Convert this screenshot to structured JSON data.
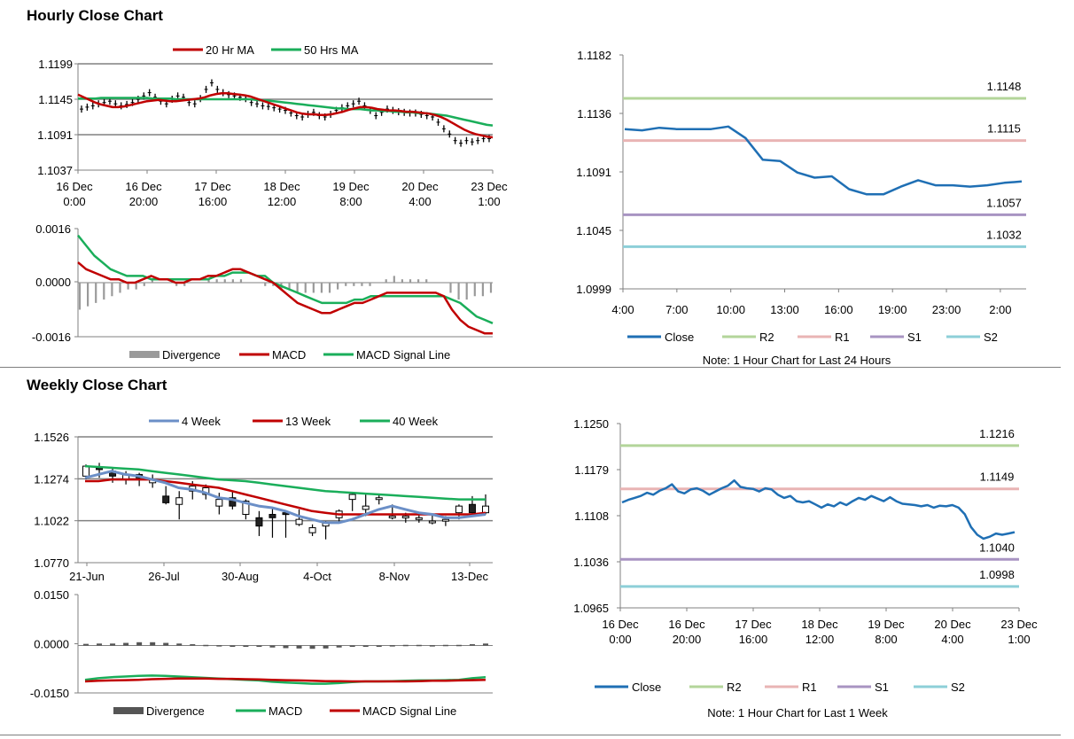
{
  "sections": {
    "hourly_title": "Hourly Close Chart",
    "weekly_title": "Weekly Close Chart"
  },
  "colors": {
    "red": "#c00000",
    "green": "#1aae5a",
    "blue": "#1f6fb4",
    "steel": "#6b8fc7",
    "gray_hist": "#9a9a9a",
    "dark_hist": "#555555",
    "r2": "#b3d59a",
    "r1": "#e9b4b4",
    "s1": "#a894c2",
    "s2": "#8dcfd8",
    "axis": "#808080"
  },
  "chart_data": [
    {
      "id": "hourly_price",
      "type": "line",
      "legend": [
        "20 Hr MA",
        "50 Hrs MA"
      ],
      "yticks": [
        "1.1199",
        "1.1145",
        "1.1091",
        "1.1037"
      ],
      "ylim": [
        1.1037,
        1.1199
      ],
      "xticks": [
        [
          "16 Dec",
          "0:00"
        ],
        [
          "16 Dec",
          "20:00"
        ],
        [
          "17 Dec",
          "16:00"
        ],
        [
          "18 Dec",
          "12:00"
        ],
        [
          "19 Dec",
          "8:00"
        ],
        [
          "20 Dec",
          "4:00"
        ],
        [
          "23 Dec",
          "1:00"
        ]
      ],
      "closes": [
        1.113,
        1.1133,
        1.1135,
        1.1138,
        1.114,
        1.1142,
        1.1138,
        1.1135,
        1.1137,
        1.114,
        1.1145,
        1.115,
        1.1155,
        1.1148,
        1.1142,
        1.1138,
        1.1145,
        1.115,
        1.1148,
        1.114,
        1.1138,
        1.1146,
        1.116,
        1.117,
        1.116,
        1.1155,
        1.1152,
        1.115,
        1.1148,
        1.1146,
        1.114,
        1.1138,
        1.1135,
        1.1134,
        1.1132,
        1.113,
        1.1128,
        1.1124,
        1.112,
        1.1118,
        1.1122,
        1.1125,
        1.112,
        1.1118,
        1.1122,
        1.1128,
        1.1132,
        1.1135,
        1.1138,
        1.1142,
        1.1135,
        1.1128,
        1.112,
        1.1125,
        1.113,
        1.1128,
        1.1126,
        1.1125,
        1.1124,
        1.1124,
        1.1122,
        1.112,
        1.1118,
        1.111,
        1.11,
        1.1092,
        1.1082,
        1.1078,
        1.1082,
        1.108,
        1.1082,
        1.1085,
        1.1085
      ],
      "ma20": [
        1.1152,
        1.1148,
        1.1144,
        1.114,
        1.1137,
        1.1135,
        1.1133,
        1.1133,
        1.1134,
        1.1136,
        1.1138,
        1.114,
        1.1142,
        1.1143,
        1.1144,
        1.1143,
        1.1142,
        1.1142,
        1.1143,
        1.1144,
        1.1145,
        1.1146,
        1.1148,
        1.1151,
        1.1153,
        1.1154,
        1.1154,
        1.1153,
        1.1152,
        1.1151,
        1.1149,
        1.1146,
        1.1143,
        1.114,
        1.1137,
        1.1134,
        1.1131,
        1.1128,
        1.1125,
        1.1123,
        1.1122,
        1.1122,
        1.1121,
        1.1121,
        1.1122,
        1.1124,
        1.1126,
        1.1129,
        1.1131,
        1.1133,
        1.1133,
        1.1132,
        1.113,
        1.1129,
        1.1128,
        1.1128,
        1.1127,
        1.1126,
        1.1126,
        1.1125,
        1.1124,
        1.1123,
        1.1121,
        1.1118,
        1.1114,
        1.1109,
        1.1104,
        1.1099,
        1.1095,
        1.1092,
        1.109,
        1.1088,
        1.1087
      ],
      "ma50": [
        1.1146,
        1.1146,
        1.1146,
        1.1146,
        1.1147,
        1.1147,
        1.1147,
        1.1147,
        1.1147,
        1.1147,
        1.1147,
        1.1147,
        1.1147,
        1.1146,
        1.1146,
        1.1146,
        1.1146,
        1.1145,
        1.1145,
        1.1145,
        1.1145,
        1.1145,
        1.1145,
        1.1145,
        1.1145,
        1.1145,
        1.1145,
        1.1145,
        1.1145,
        1.1145,
        1.1145,
        1.1144,
        1.1143,
        1.1143,
        1.1142,
        1.1141,
        1.114,
        1.1139,
        1.1138,
        1.1137,
        1.1136,
        1.1135,
        1.1134,
        1.1133,
        1.1132,
        1.1131,
        1.1131,
        1.113,
        1.113,
        1.113,
        1.1129,
        1.1128,
        1.1128,
        1.1127,
        1.1127,
        1.1126,
        1.1126,
        1.1125,
        1.1125,
        1.1124,
        1.1124,
        1.1123,
        1.1122,
        1.1121,
        1.112,
        1.1118,
        1.1116,
        1.1114,
        1.1112,
        1.111,
        1.1108,
        1.1106,
        1.1105
      ]
    },
    {
      "id": "hourly_macd",
      "type": "line",
      "legend": [
        "Divergence",
        "MACD",
        "MACD Signal Line"
      ],
      "yticks": [
        "0.0016",
        "0.0000",
        "-0.0016"
      ],
      "ylim": [
        -0.0016,
        0.0016
      ],
      "macd": [
        0.0006,
        0.0004,
        0.0003,
        0.0002,
        0.0001,
        0.0001,
        0.0,
        0.0,
        0.0001,
        0.0002,
        0.0001,
        0.0001,
        0.0,
        0.0,
        0.0001,
        0.0001,
        0.0002,
        0.0002,
        0.0003,
        0.0004,
        0.0004,
        0.0003,
        0.0002,
        0.0001,
        0.0,
        -0.0002,
        -0.0004,
        -0.0006,
        -0.0007,
        -0.0008,
        -0.0009,
        -0.0009,
        -0.0008,
        -0.0007,
        -0.0006,
        -0.0006,
        -0.0005,
        -0.0004,
        -0.0003,
        -0.0003,
        -0.0003,
        -0.0003,
        -0.0003,
        -0.0003,
        -0.0003,
        -0.0004,
        -0.0008,
        -0.0011,
        -0.0013,
        -0.0014,
        -0.0015,
        -0.0015
      ],
      "signal": [
        0.0014,
        0.0011,
        0.0008,
        0.0006,
        0.0004,
        0.0003,
        0.0002,
        0.0002,
        0.0002,
        0.0001,
        0.0001,
        0.0001,
        0.0001,
        0.0001,
        0.0001,
        0.0001,
        0.0001,
        0.0002,
        0.0002,
        0.0003,
        0.0003,
        0.0003,
        0.0002,
        0.0002,
        0.0,
        -0.0001,
        -0.0002,
        -0.0003,
        -0.0004,
        -0.0005,
        -0.0006,
        -0.0006,
        -0.0006,
        -0.0006,
        -0.0005,
        -0.0005,
        -0.0004,
        -0.0004,
        -0.0004,
        -0.0004,
        -0.0004,
        -0.0004,
        -0.0004,
        -0.0004,
        -0.0004,
        -0.0004,
        -0.0005,
        -0.0006,
        -0.0008,
        -0.001,
        -0.0011,
        -0.0012
      ],
      "divergence": [
        -0.0008,
        -0.0007,
        -0.0006,
        -0.0005,
        -0.0004,
        -0.0003,
        -0.0002,
        -0.0002,
        -0.0001,
        0.0001,
        0.0,
        0.0,
        -0.0001,
        -0.0001,
        0.0,
        0.0,
        0.0001,
        0.0001,
        0.0001,
        0.0001,
        0.0001,
        0.0,
        0.0,
        -0.0001,
        -0.0001,
        -0.0002,
        -0.0002,
        -0.0003,
        -0.0003,
        -0.0003,
        -0.0003,
        -0.0003,
        -0.0002,
        -0.0001,
        -0.0001,
        -0.0001,
        -0.0001,
        0.0,
        0.0001,
        0.0002,
        0.0001,
        0.0001,
        0.0001,
        0.0001,
        0.0,
        0.0,
        -0.0003,
        -0.0005,
        -0.0005,
        -0.0004,
        -0.0004,
        -0.0003
      ]
    },
    {
      "id": "hourly_sr",
      "type": "line",
      "yticks": [
        "1.1182",
        "1.1136",
        "1.1091",
        "1.1045",
        "1.0999"
      ],
      "ylim": [
        1.0999,
        1.1182
      ],
      "xticks": [
        "4:00",
        "7:00",
        "10:00",
        "13:00",
        "16:00",
        "19:00",
        "23:00",
        "2:00"
      ],
      "close": [
        1.1124,
        1.1123,
        1.1125,
        1.1124,
        1.1124,
        1.1124,
        1.1126,
        1.1117,
        1.11,
        1.1099,
        1.109,
        1.1086,
        1.1087,
        1.1077,
        1.1073,
        1.1073,
        1.1079,
        1.1084,
        1.108,
        1.108,
        1.1079,
        1.108,
        1.1082,
        1.1083
      ],
      "levels": {
        "R2": 1.1148,
        "R1": 1.1115,
        "S1": 1.1057,
        "S2": 1.1032
      },
      "level_labels": {
        "R2": "1.1148",
        "R1": "1.1115",
        "S1": "1.1057",
        "S2": "1.1032"
      },
      "legend": [
        "Close",
        "R2",
        "R1",
        "S1",
        "S2"
      ],
      "note": "Note: 1 Hour Chart for Last 24 Hours"
    },
    {
      "id": "weekly_price",
      "type": "line",
      "legend": [
        "4 Week",
        "13 Week",
        "40 Week"
      ],
      "yticks": [
        "1.1526",
        "1.1274",
        "1.1022",
        "1.0770"
      ],
      "ylim": [
        1.077,
        1.1526
      ],
      "xticks": [
        "21-Jun",
        "26-Jul",
        "30-Aug",
        "4-Oct",
        "8-Nov",
        "13-Dec"
      ],
      "candles": [
        [
          1.129,
          1.135,
          1.136,
          1.127
        ],
        [
          1.134,
          1.133,
          1.137,
          1.128
        ],
        [
          1.132,
          1.129,
          1.134,
          1.125
        ],
        [
          1.127,
          1.13,
          1.132,
          1.124
        ],
        [
          1.13,
          1.128,
          1.131,
          1.123
        ],
        [
          1.125,
          1.127,
          1.13,
          1.122
        ],
        [
          1.117,
          1.113,
          1.123,
          1.112
        ],
        [
          1.112,
          1.116,
          1.12,
          1.103
        ],
        [
          1.12,
          1.123,
          1.126,
          1.115
        ],
        [
          1.118,
          1.122,
          1.124,
          1.115
        ],
        [
          1.111,
          1.115,
          1.119,
          1.106
        ],
        [
          1.116,
          1.111,
          1.12,
          1.109
        ],
        [
          1.106,
          1.114,
          1.115,
          1.103
        ],
        [
          1.104,
          1.099,
          1.108,
          1.093
        ],
        [
          1.106,
          1.104,
          1.11,
          1.092
        ],
        [
          1.107,
          1.106,
          1.108,
          1.092
        ],
        [
          1.1,
          1.103,
          1.109,
          1.099
        ],
        [
          1.095,
          1.098,
          1.1,
          1.093
        ],
        [
          1.099,
          1.101,
          1.102,
          1.091
        ],
        [
          1.104,
          1.108,
          1.109,
          1.101
        ],
        [
          1.115,
          1.118,
          1.119,
          1.108
        ],
        [
          1.109,
          1.111,
          1.118,
          1.105
        ],
        [
          1.115,
          1.116,
          1.118,
          1.112
        ],
        [
          1.104,
          1.105,
          1.112,
          1.103
        ],
        [
          1.104,
          1.105,
          1.107,
          1.101
        ],
        [
          1.103,
          1.104,
          1.107,
          1.101
        ],
        [
          1.101,
          1.102,
          1.106,
          1.1
        ],
        [
          1.102,
          1.103,
          1.105,
          1.099
        ],
        [
          1.107,
          1.111,
          1.112,
          1.103
        ],
        [
          1.112,
          1.107,
          1.117,
          1.105
        ],
        [
          1.107,
          1.111,
          1.118,
          1.106
        ]
      ],
      "wk4": [
        1.128,
        1.13,
        1.132,
        1.13,
        1.129,
        1.127,
        1.125,
        1.122,
        1.121,
        1.119,
        1.116,
        1.115,
        1.113,
        1.111,
        1.11,
        1.108,
        1.105,
        1.103,
        1.101,
        1.101,
        1.103,
        1.106,
        1.109,
        1.111,
        1.109,
        1.107,
        1.106,
        1.104,
        1.104,
        1.105,
        1.106
      ],
      "wk13": [
        1.126,
        1.126,
        1.127,
        1.127,
        1.127,
        1.127,
        1.126,
        1.125,
        1.124,
        1.123,
        1.122,
        1.12,
        1.118,
        1.116,
        1.114,
        1.112,
        1.11,
        1.108,
        1.107,
        1.106,
        1.106,
        1.106,
        1.106,
        1.106,
        1.106,
        1.106,
        1.106,
        1.106,
        1.106,
        1.106,
        1.107
      ],
      "wk40": [
        1.135,
        1.1345,
        1.134,
        1.1335,
        1.133,
        1.132,
        1.131,
        1.13,
        1.129,
        1.128,
        1.127,
        1.1265,
        1.126,
        1.125,
        1.124,
        1.123,
        1.122,
        1.121,
        1.12,
        1.1195,
        1.119,
        1.1185,
        1.118,
        1.1175,
        1.117,
        1.1165,
        1.116,
        1.1155,
        1.115,
        1.115,
        1.115
      ]
    },
    {
      "id": "weekly_macd",
      "type": "line",
      "legend": [
        "Divergence",
        "MACD",
        "MACD Signal Line"
      ],
      "yticks": [
        "0.0150",
        "0.0000",
        "-0.0150"
      ],
      "ylim": [
        -0.015,
        0.015
      ],
      "macd": [
        -0.011,
        -0.0105,
        -0.0102,
        -0.01,
        -0.0098,
        -0.0097,
        -0.0098,
        -0.01,
        -0.0102,
        -0.0104,
        -0.0106,
        -0.0108,
        -0.011,
        -0.0112,
        -0.0116,
        -0.0118,
        -0.012,
        -0.0122,
        -0.0122,
        -0.012,
        -0.0117,
        -0.0115,
        -0.0115,
        -0.0114,
        -0.0113,
        -0.0112,
        -0.0112,
        -0.0111,
        -0.011,
        -0.0105,
        -0.0102
      ],
      "signal": [
        -0.0115,
        -0.0113,
        -0.0112,
        -0.0111,
        -0.011,
        -0.0108,
        -0.0107,
        -0.0106,
        -0.0106,
        -0.0106,
        -0.0107,
        -0.0107,
        -0.0108,
        -0.0109,
        -0.011,
        -0.0111,
        -0.0112,
        -0.0113,
        -0.0114,
        -0.0114,
        -0.0115,
        -0.0115,
        -0.0115,
        -0.0115,
        -0.0115,
        -0.0114,
        -0.0113,
        -0.0113,
        -0.0112,
        -0.0111,
        -0.011
      ],
      "divergence": [
        0.0005,
        0.0006,
        0.0006,
        0.0008,
        0.001,
        0.001,
        0.0008,
        0.0006,
        0.0004,
        0.0002,
        0.0001,
        -0.0002,
        -0.0002,
        -0.0004,
        -0.0006,
        -0.0008,
        -0.0009,
        -0.001,
        -0.0009,
        -0.0006,
        -0.0002,
        0.0,
        0.0,
        0.0001,
        0.0002,
        0.0002,
        0.0001,
        0.0002,
        0.0002,
        0.0004,
        0.0006
      ]
    },
    {
      "id": "weekly_sr",
      "type": "line",
      "yticks": [
        "1.1250",
        "1.1179",
        "1.1108",
        "1.1036",
        "1.0965"
      ],
      "ylim": [
        1.0965,
        1.125
      ],
      "xticks": [
        [
          "16 Dec",
          "0:00"
        ],
        [
          "16 Dec",
          "20:00"
        ],
        [
          "17 Dec",
          "16:00"
        ],
        [
          "18 Dec",
          "12:00"
        ],
        [
          "19 Dec",
          "8:00"
        ],
        [
          "20 Dec",
          "4:00"
        ],
        [
          "23 Dec",
          "1:00"
        ]
      ],
      "close": [
        1.1128,
        1.1132,
        1.1135,
        1.1138,
        1.1143,
        1.114,
        1.1146,
        1.115,
        1.1156,
        1.1145,
        1.1142,
        1.1148,
        1.115,
        1.1146,
        1.114,
        1.1145,
        1.115,
        1.1154,
        1.1162,
        1.1152,
        1.115,
        1.1149,
        1.1145,
        1.115,
        1.1148,
        1.114,
        1.1135,
        1.1138,
        1.113,
        1.1128,
        1.113,
        1.1125,
        1.112,
        1.1125,
        1.1122,
        1.1128,
        1.1124,
        1.113,
        1.1135,
        1.1132,
        1.1138,
        1.1134,
        1.113,
        1.1136,
        1.113,
        1.1126,
        1.1125,
        1.1124,
        1.1122,
        1.1124,
        1.112,
        1.1123,
        1.1122,
        1.1124,
        1.112,
        1.111,
        1.109,
        1.1078,
        1.1072,
        1.1075,
        1.108,
        1.1078,
        1.108,
        1.1082
      ],
      "levels": {
        "R2": 1.1216,
        "R1": 1.1149,
        "S1": 1.104,
        "S2": 1.0998
      },
      "level_labels": {
        "R2": "1.1216",
        "R1": "1.1149",
        "S1": "1.1040",
        "S2": "1.0998"
      },
      "legend": [
        "Close",
        "R2",
        "R1",
        "S1",
        "S2"
      ],
      "note": "Note: 1 Hour Chart for Last 1 Week"
    }
  ]
}
